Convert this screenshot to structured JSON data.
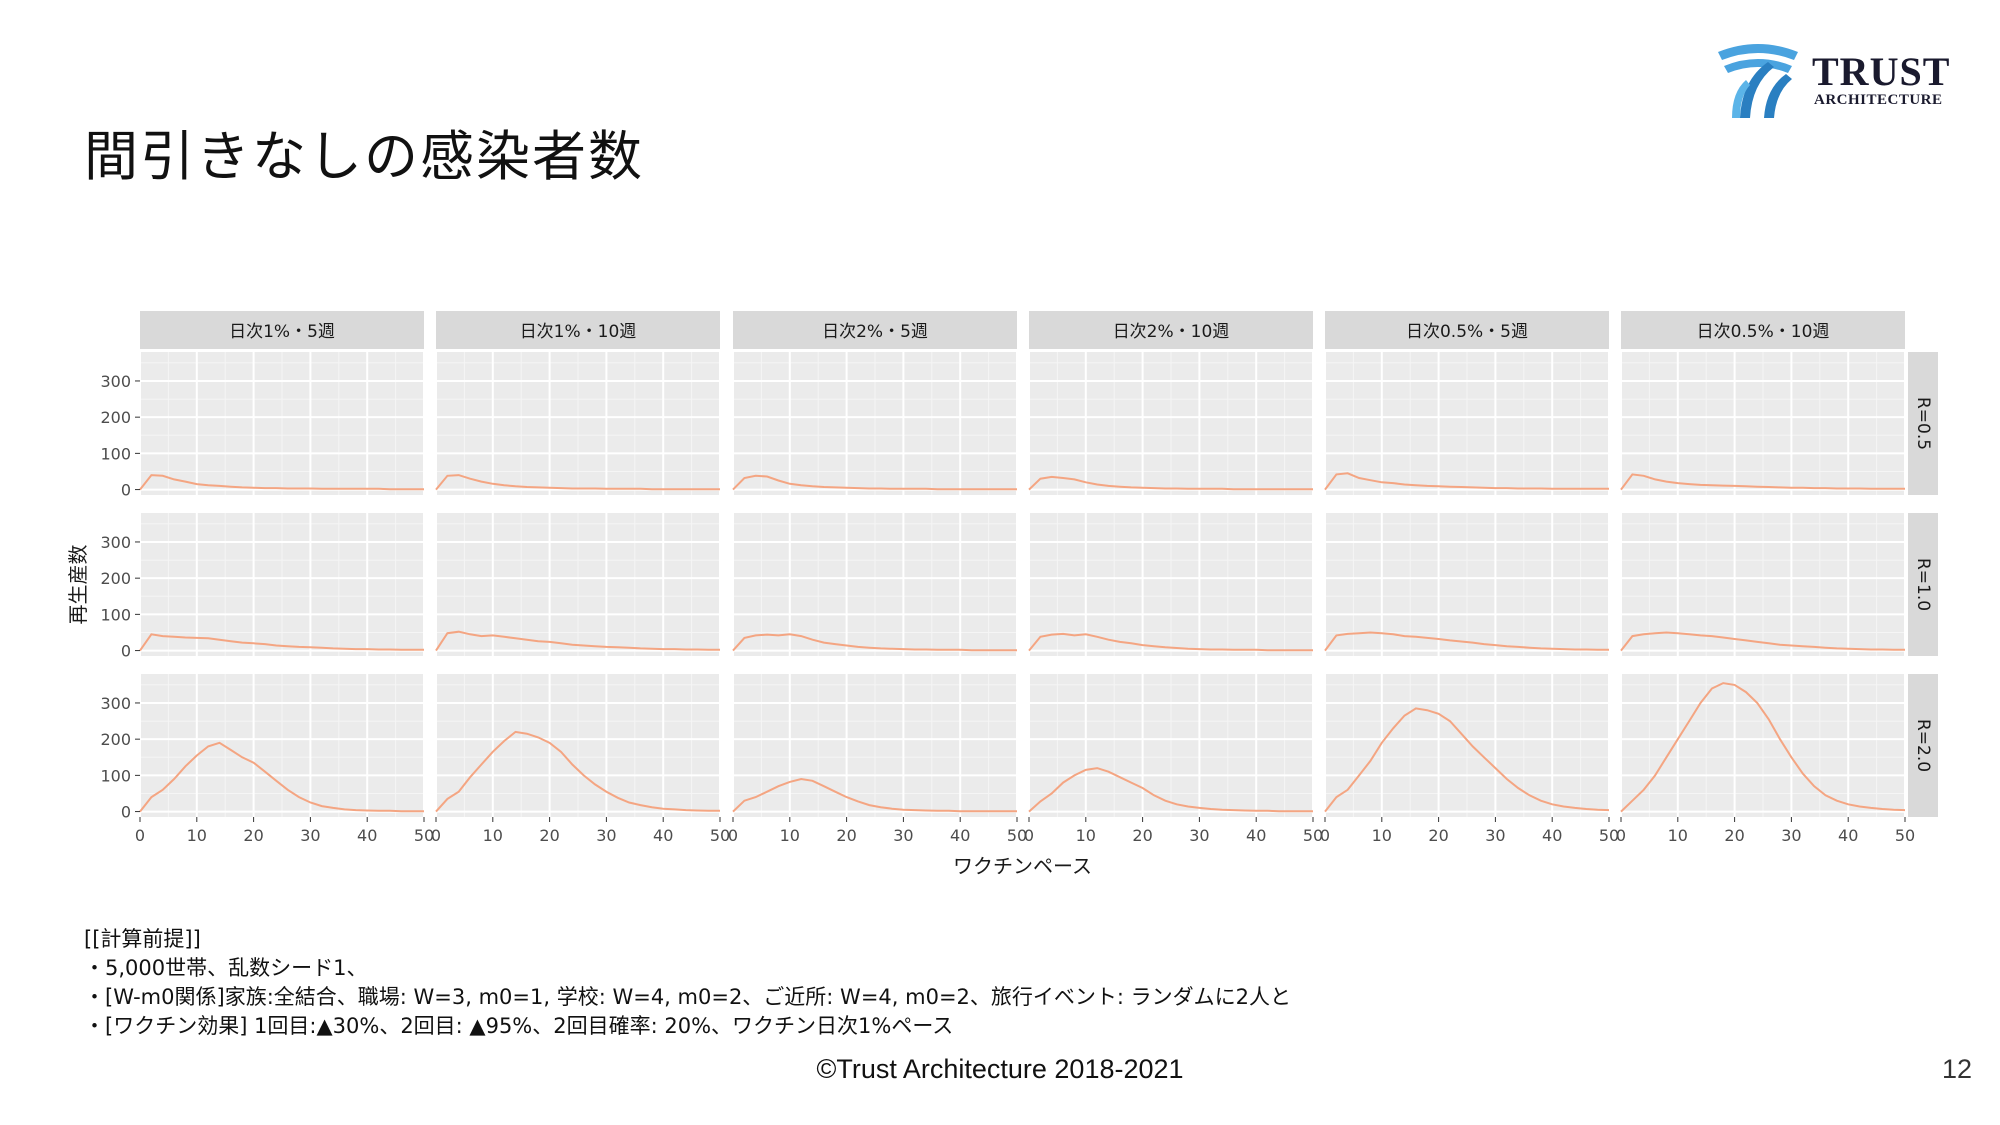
{
  "slide": {
    "title": "間引きなしの感染者数",
    "logo": {
      "name": "TRUST",
      "sub": "ARCHITECTURE"
    },
    "notes": [
      "[[計算前提]]",
      "・5,000世帯、乱数シード1、",
      "・[W-m0関係]家族:全結合、職場: W=3, m0=1, 学校: W=4, m0=2、ご近所: W=4, m0=2、旅行イベント: ランダムに2人と",
      "・[ワクチン効果] 1回目:▲30%、2回目: ▲95%、2回目確率: 20%、ワクチン日次1%ペース"
    ],
    "footer": "©Trust Architecture 2018-2021",
    "page_number": "12"
  },
  "chart_data": {
    "type": "line",
    "facet_columns": [
      "日次1%・5週",
      "日次1%・10週",
      "日次2%・5週",
      "日次2%・10週",
      "日次0.5%・5週",
      "日次0.5%・10週"
    ],
    "facet_rows": [
      "R=0.5",
      "R=1.0",
      "R=2.0"
    ],
    "xlabel": "ワクチンペース",
    "ylabel": "再生産数",
    "xlim": [
      0,
      50
    ],
    "ylim": [
      -15,
      380
    ],
    "x_ticks": [
      0,
      10,
      20,
      30,
      40,
      50
    ],
    "y_ticks": [
      0,
      100,
      200,
      300
    ],
    "x": [
      0,
      2,
      4,
      6,
      8,
      10,
      12,
      14,
      16,
      18,
      20,
      22,
      24,
      26,
      28,
      30,
      32,
      34,
      36,
      38,
      40,
      42,
      44,
      46,
      48,
      50
    ],
    "line_color": "#f4a582",
    "panel_bg": "#ebebeb",
    "strip_bg": "#d9d9d9",
    "panels": [
      [
        [
          0,
          40,
          38,
          28,
          22,
          15,
          12,
          10,
          8,
          6,
          5,
          4,
          4,
          3,
          3,
          3,
          2,
          2,
          2,
          2,
          2,
          2,
          1,
          1,
          1,
          1
        ],
        [
          0,
          38,
          40,
          30,
          22,
          16,
          12,
          9,
          7,
          6,
          5,
          4,
          3,
          3,
          3,
          2,
          2,
          2,
          2,
          1,
          1,
          1,
          1,
          1,
          1,
          1
        ],
        [
          0,
          32,
          38,
          36,
          25,
          16,
          12,
          9,
          7,
          6,
          5,
          4,
          3,
          3,
          2,
          2,
          2,
          2,
          1,
          1,
          1,
          1,
          1,
          1,
          1,
          1
        ],
        [
          0,
          30,
          35,
          32,
          28,
          20,
          14,
          10,
          8,
          6,
          5,
          4,
          3,
          3,
          2,
          2,
          2,
          2,
          1,
          1,
          1,
          1,
          1,
          1,
          1,
          1
        ],
        [
          0,
          42,
          45,
          32,
          26,
          20,
          18,
          14,
          12,
          10,
          9,
          8,
          7,
          6,
          5,
          4,
          4,
          3,
          3,
          3,
          2,
          2,
          2,
          2,
          2,
          2
        ],
        [
          0,
          42,
          38,
          28,
          22,
          18,
          15,
          13,
          12,
          11,
          10,
          9,
          8,
          7,
          6,
          5,
          5,
          4,
          4,
          3,
          3,
          3,
          2,
          2,
          2,
          2
        ]
      ],
      [
        [
          0,
          45,
          40,
          38,
          36,
          35,
          34,
          30,
          26,
          22,
          20,
          18,
          14,
          12,
          10,
          9,
          8,
          6,
          5,
          4,
          4,
          3,
          3,
          2,
          2,
          2
        ],
        [
          0,
          48,
          52,
          45,
          40,
          42,
          38,
          34,
          30,
          26,
          24,
          20,
          16,
          14,
          12,
          10,
          9,
          8,
          6,
          5,
          4,
          4,
          3,
          3,
          2,
          2
        ],
        [
          0,
          35,
          42,
          44,
          42,
          45,
          40,
          30,
          22,
          18,
          14,
          10,
          8,
          6,
          5,
          4,
          3,
          3,
          2,
          2,
          2,
          1,
          1,
          1,
          1,
          1
        ],
        [
          0,
          38,
          44,
          46,
          42,
          45,
          38,
          30,
          24,
          20,
          15,
          12,
          9,
          7,
          5,
          4,
          3,
          3,
          2,
          2,
          2,
          1,
          1,
          1,
          1,
          1
        ],
        [
          0,
          42,
          46,
          48,
          50,
          48,
          45,
          40,
          38,
          35,
          32,
          28,
          25,
          22,
          18,
          15,
          12,
          10,
          8,
          6,
          5,
          4,
          3,
          3,
          2,
          2
        ],
        [
          0,
          40,
          45,
          48,
          50,
          48,
          45,
          42,
          40,
          36,
          32,
          28,
          24,
          20,
          16,
          14,
          12,
          10,
          8,
          6,
          5,
          4,
          3,
          3,
          2,
          2
        ]
      ],
      [
        [
          0,
          40,
          60,
          90,
          125,
          155,
          180,
          190,
          170,
          150,
          135,
          110,
          85,
          60,
          40,
          25,
          15,
          10,
          6,
          4,
          3,
          2,
          2,
          1,
          1,
          1
        ],
        [
          0,
          35,
          55,
          95,
          130,
          165,
          195,
          220,
          215,
          205,
          190,
          165,
          130,
          100,
          75,
          55,
          38,
          25,
          18,
          12,
          8,
          6,
          4,
          3,
          2,
          2
        ],
        [
          0,
          30,
          40,
          55,
          70,
          82,
          90,
          85,
          70,
          55,
          40,
          28,
          18,
          12,
          8,
          5,
          4,
          3,
          2,
          2,
          1,
          1,
          1,
          1,
          1,
          1
        ],
        [
          0,
          28,
          50,
          80,
          100,
          115,
          120,
          110,
          95,
          80,
          65,
          45,
          30,
          20,
          14,
          10,
          7,
          5,
          4,
          3,
          2,
          2,
          1,
          1,
          1,
          1
        ],
        [
          0,
          40,
          60,
          100,
          140,
          190,
          230,
          265,
          285,
          280,
          270,
          250,
          215,
          180,
          150,
          120,
          90,
          65,
          45,
          30,
          20,
          14,
          10,
          7,
          5,
          4
        ],
        [
          0,
          30,
          60,
          100,
          150,
          200,
          250,
          300,
          340,
          355,
          350,
          330,
          300,
          255,
          200,
          150,
          105,
          70,
          45,
          30,
          20,
          14,
          10,
          7,
          5,
          4
        ]
      ]
    ]
  }
}
